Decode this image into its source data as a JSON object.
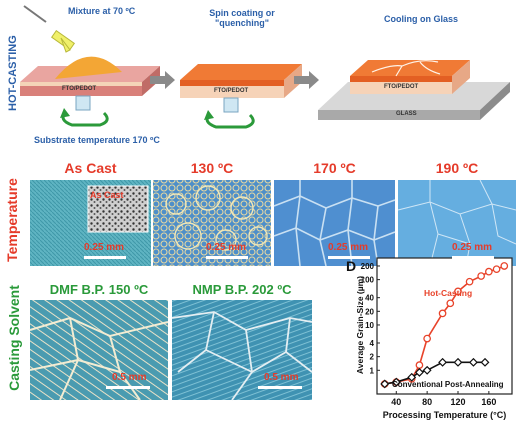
{
  "process": {
    "side_label": "HOT-CASTING",
    "mixture_label": "Mixture at 70 ºC",
    "spin_label": "Spin coating or \"quenching\"",
    "cooling_label": "Cooling on Glass",
    "substrate_label": "FTO/PEDOT",
    "glass_label": "GLASS",
    "substrate_temp_label": "Substrate temperature 170 ºC"
  },
  "temperature_row": {
    "side_label": "Temperature",
    "panels": [
      {
        "title": "As Cast",
        "inset_label": "As Cast",
        "scale": "0.25 mm"
      },
      {
        "title": "130 ºC",
        "scale": "0.25 mm"
      },
      {
        "title": "170 ºC",
        "scale": "0.25 mm"
      },
      {
        "title": "190 ºC",
        "scale": "0.25 mm"
      }
    ]
  },
  "solvent_row": {
    "side_label": "Casting Solvent",
    "panels": [
      {
        "title": "DMF B.P. 150 ºC",
        "scale": "0.5 mm"
      },
      {
        "title": "NMP B.P. 202 ºC",
        "scale": "0.5 mm"
      }
    ]
  },
  "chart": {
    "panel_letter": "D",
    "ylabel": "Average Grain-Size (µm)",
    "xlabel": "Processing Temperature (°C)"
  },
  "chart_data": {
    "type": "line",
    "xlabel": "Processing Temperature (°C)",
    "ylabel": "Average Grain-Size (µm)",
    "xlim": [
      15,
      190
    ],
    "ylim": [
      0.3,
      300
    ],
    "yscale": "log",
    "xticks": [
      40,
      80,
      120,
      160
    ],
    "yticks": [
      200,
      100,
      40,
      20,
      10,
      4,
      2,
      1
    ],
    "series": [
      {
        "name": "Hot-Casting",
        "color": "#e8432a",
        "marker": "circle",
        "x": [
          25,
          40,
          60,
          70,
          80,
          100,
          110,
          120,
          135,
          150,
          160,
          170,
          180
        ],
        "y": [
          0.5,
          0.55,
          0.65,
          1.3,
          5,
          18,
          30,
          55,
          90,
          120,
          150,
          170,
          200
        ]
      },
      {
        "name": "Conventional Post-Annealing",
        "color": "#111111",
        "marker": "diamond",
        "x": [
          25,
          40,
          60,
          70,
          80,
          100,
          120,
          140,
          155
        ],
        "y": [
          0.5,
          0.55,
          0.7,
          0.9,
          1.0,
          1.5,
          1.5,
          1.5,
          1.5
        ]
      }
    ]
  }
}
